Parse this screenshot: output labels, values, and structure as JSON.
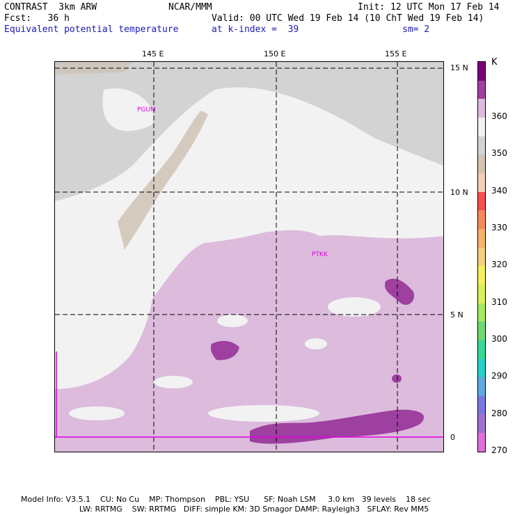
{
  "header": {
    "line1_left": "CONTRAST  3km ARW",
    "line1_mid": "NCAR/MMM",
    "line1_right": "Init: 12 UTC Mon 17 Feb 14",
    "line2_left": "Fcst:   36 h",
    "line2_right": "Valid: 00 UTC Wed 19 Feb 14 (10 ChT Wed 19 Feb 14)",
    "line3_left": "Equivalent potential temperature",
    "line3_mid": "at k-index =  39",
    "line3_right": "sm= 2"
  },
  "map": {
    "lon_labels": [
      "145 E",
      "150 E",
      "155 E"
    ],
    "lat_labels": [
      "15 N",
      "10 N",
      "5 N",
      "0"
    ],
    "stations": [
      "PGUM",
      "PTKK"
    ]
  },
  "legend": {
    "unit": "K",
    "labels": [
      "360",
      "350",
      "340",
      "330",
      "320",
      "310",
      "300",
      "290",
      "280",
      "270"
    ],
    "colors": [
      "#7a007a",
      "#a040a0",
      "#ddbbdd",
      "#f2f2f2",
      "#d4d4d4",
      "#d4c4b4",
      "#f4cfb8",
      "#f45050",
      "#f48a5a",
      "#f4b26a",
      "#f4d080",
      "#f4f060",
      "#d8f060",
      "#a4e864",
      "#6ed872",
      "#3ad894",
      "#28d0c8",
      "#60a8e0",
      "#7878e0",
      "#a070d0",
      "#e070d8"
    ]
  },
  "footer": {
    "line1": "Model Info: V3.5.1    CU: No Cu    MP: Thompson    PBL: YSU      SF: Noah LSM     3.0 km   39 levels    18 sec",
    "line2": "                        LW: RRTMG    SW: RRTMG   DIFF: simple KM: 3D Smagor DAMP: Rayleigh3   SFLAY: Rev MM5"
  }
}
